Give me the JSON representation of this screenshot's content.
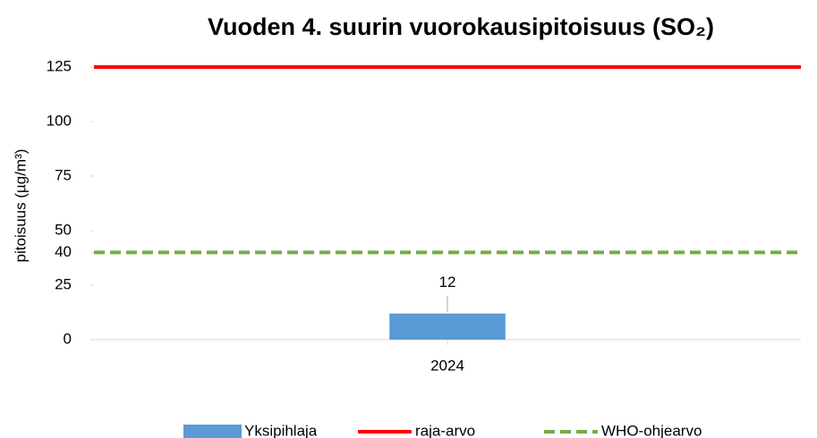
{
  "chart_data": {
    "type": "bar",
    "title": "Vuoden 4. suurin vuorokausipitoisuus (SO₂)",
    "y_label": "pitoisuus (µg/m³)",
    "categories": [
      "2024"
    ],
    "series": [
      {
        "name": "Yksipihlaja",
        "color": "#5b9bd5",
        "values": [
          12
        ]
      }
    ],
    "reference_lines": [
      {
        "name": "raja-arvo",
        "color": "#ff0000",
        "value": 125,
        "dashed": false
      },
      {
        "name": "WHO-ohjearvo",
        "color": "#70ad47",
        "value": 40,
        "dashed": true
      }
    ],
    "ylim": [
      0,
      125
    ],
    "yticks": [
      0,
      25,
      40,
      50,
      75,
      100,
      125
    ],
    "grid": false,
    "legend": "bottom"
  }
}
